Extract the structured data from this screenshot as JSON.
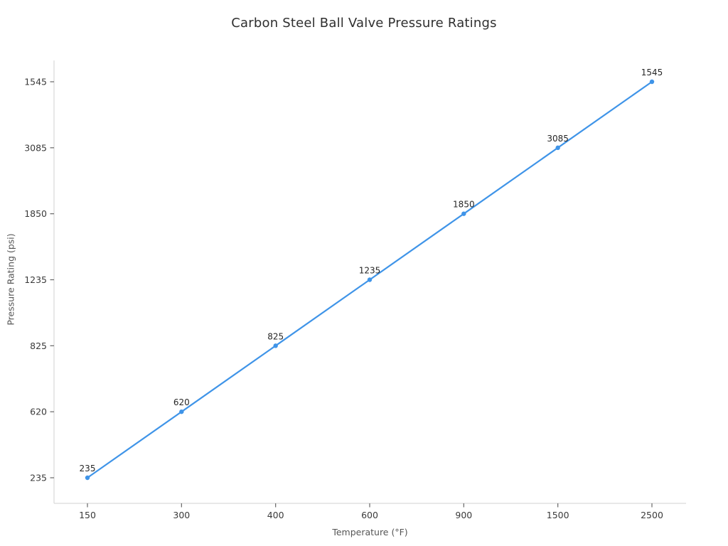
{
  "chart_data": {
    "type": "line",
    "title": "Carbon Steel Ball Valve Pressure Ratings",
    "xlabel": "Temperature (°F)",
    "ylabel": "Pressure Rating (psi)",
    "x": [
      150,
      300,
      400,
      600,
      900,
      1500,
      2500
    ],
    "y": [
      235,
      620,
      825,
      1235,
      1850,
      3085,
      1545
    ],
    "point_labels": [
      "235",
      "620",
      "825",
      "1235",
      "1850",
      "3085",
      "1545"
    ],
    "x_tick_labels": [
      "150",
      "300",
      "400",
      "600",
      "900",
      "1500",
      "2500"
    ],
    "y_tick_labels_bottom_to_top": [
      "235",
      "620",
      "825",
      "1235",
      "1850",
      "3085",
      "1545"
    ],
    "axis_scale_note": "both axes rendered categorically with equal tick spacing, so the series appears as a straight line",
    "grid": false,
    "legend": null,
    "colors": {
      "line": "#3f94e8",
      "marker": "#3f94e8",
      "spine": "#d9d9d9",
      "tick": "#666666",
      "tick_label": "#3a3a3a",
      "annotation": "#262626",
      "title": "#2f2f2f",
      "axis_label": "#555555"
    }
  }
}
